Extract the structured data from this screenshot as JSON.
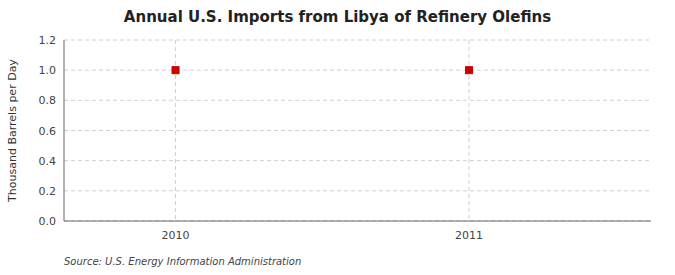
{
  "chart_data": {
    "type": "scatter",
    "title": "Annual U.S. Imports from Libya of Refinery Olefins",
    "ylabel": "Thousand Barrels per Day",
    "source": "Source: U.S. Energy Information Administration",
    "x": [
      2010,
      2011
    ],
    "values": [
      1.0,
      1.0
    ],
    "color": "#cc0000",
    "marker": "square",
    "xlim": [
      2009.62,
      2011.62
    ],
    "xticks": [
      2010,
      2011
    ],
    "ylim": [
      0.0,
      1.2
    ],
    "yticks": [
      {
        "value": 0.0,
        "label": "0.0"
      },
      0.2,
      0.4,
      0.6,
      0.8,
      {
        "value": 1.0,
        "label": "1.0"
      },
      1.2
    ],
    "grid": true
  }
}
